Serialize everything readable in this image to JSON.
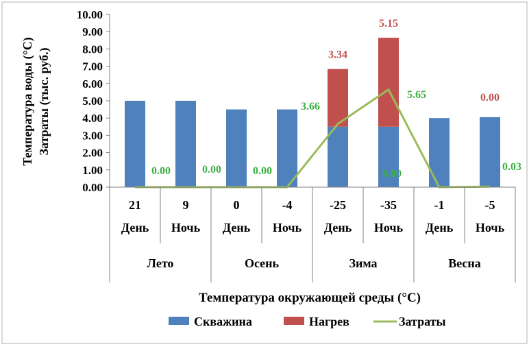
{
  "chart_data": {
    "type": "bar",
    "stacked": true,
    "categories": [
      {
        "temp": "21",
        "time": "День",
        "season": "Лето"
      },
      {
        "temp": "9",
        "time": "Ночь",
        "season": "Лето"
      },
      {
        "temp": "0",
        "time": "День",
        "season": "Осень"
      },
      {
        "temp": "-4",
        "time": "Ночь",
        "season": "Осень"
      },
      {
        "temp": "-25",
        "time": "День",
        "season": "Зима"
      },
      {
        "temp": "-35",
        "time": "Ночь",
        "season": "Зима"
      },
      {
        "temp": "-1",
        "time": "День",
        "season": "Весна"
      },
      {
        "temp": "-5",
        "time": "Ночь",
        "season": "Весна"
      }
    ],
    "seasons": [
      "Лето",
      "Осень",
      "Зима",
      "Весна"
    ],
    "series": [
      {
        "name": "Скважина",
        "type": "bar",
        "color": "#4f81bd",
        "values": [
          5.0,
          5.0,
          4.5,
          4.5,
          3.5,
          3.5,
          4.0,
          4.05
        ]
      },
      {
        "name": "Нагрев",
        "type": "bar",
        "color": "#c0504d",
        "values": [
          0,
          0,
          0,
          0,
          3.34,
          5.15,
          0,
          0
        ]
      },
      {
        "name": "Затраты",
        "type": "line",
        "color": "#9bbb59",
        "values": [
          0.0,
          0.0,
          0.0,
          0.0,
          3.66,
          5.65,
          0.0,
          0.03
        ]
      }
    ],
    "heat_labels": {
      "4": "3.34",
      "5": "5.15",
      "7": "0.00"
    },
    "cost_labels": {
      "1": "0.00",
      "2": "0.00",
      "3": "0.00",
      "4": "3.66",
      "5": "5.65",
      "6": "0.00",
      "7": "0.03"
    },
    "yticks": [
      "0.00",
      "1.00",
      "2.00",
      "3.00",
      "4.00",
      "5.00",
      "6.00",
      "7.00",
      "8.00",
      "9.00",
      "10.00"
    ],
    "ylim": [
      0,
      10
    ],
    "ylabel_line1": "Температура воды (°C)",
    "ylabel_line2": "Затраты (тыс. руб.)",
    "xlabel": "Температура окружающей среды (°C)",
    "legend_position": "bottom"
  }
}
